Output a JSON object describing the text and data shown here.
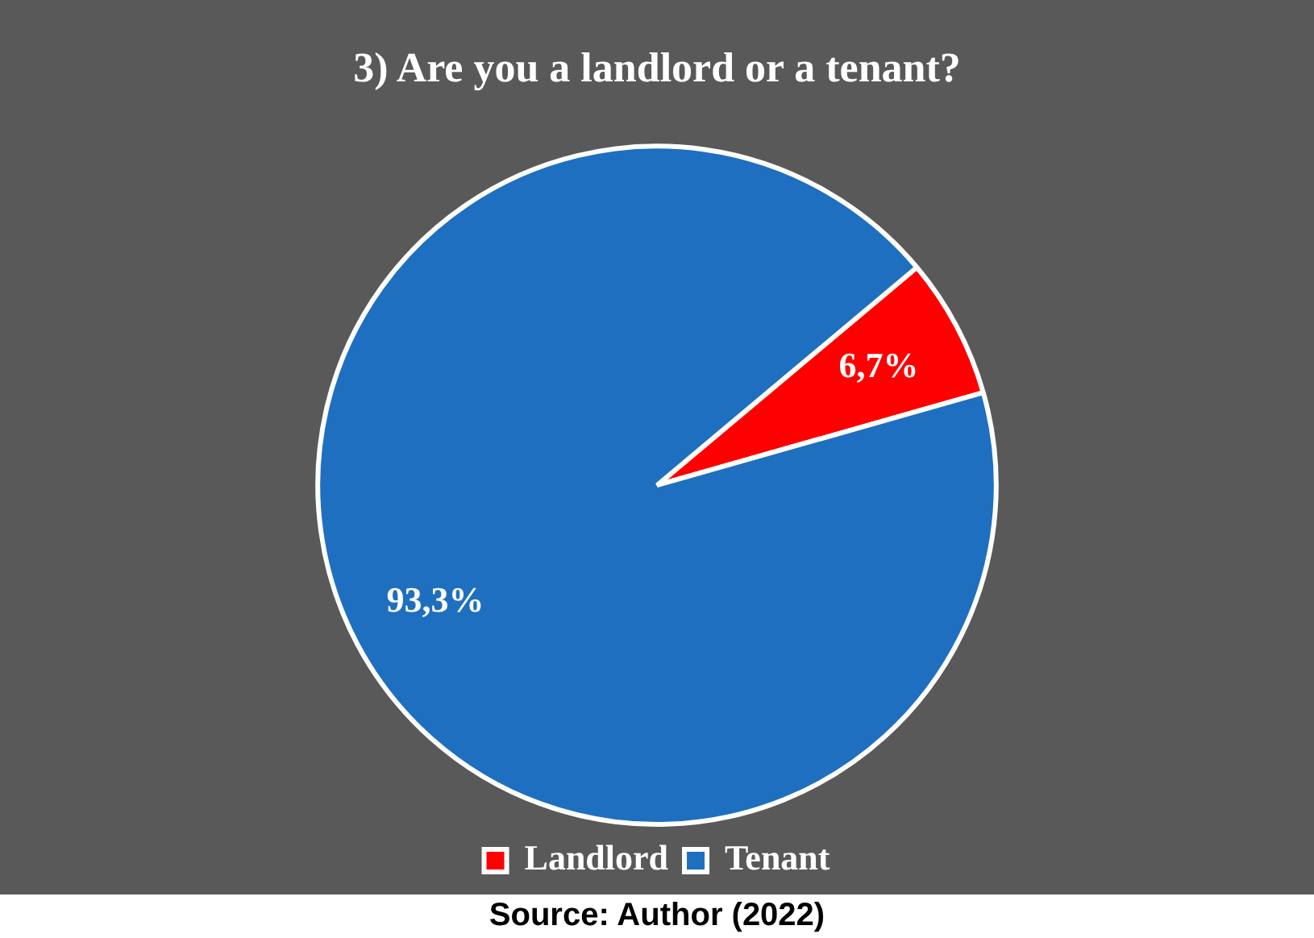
{
  "chart_data": {
    "type": "pie",
    "title": "3) Are you a landlord or a tenant?",
    "categories": [
      "Landlord",
      "Tenant"
    ],
    "values": [
      6.7,
      93.3
    ],
    "colors": [
      "#ff0000",
      "#1f6fc0"
    ],
    "value_labels": [
      "6,7%",
      "93,3%"
    ],
    "legend": "bottom",
    "annotations": [
      "Source: Author (2022)"
    ]
  }
}
